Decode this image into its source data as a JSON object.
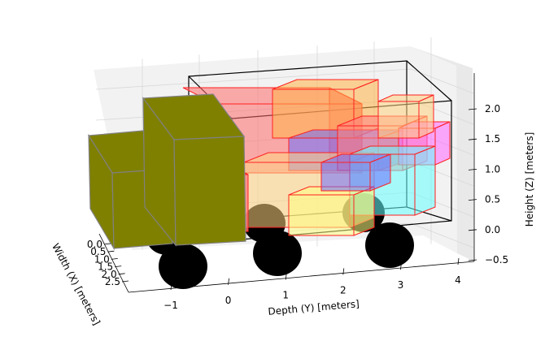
{
  "chart_data": {
    "type": "3d-box",
    "axes": {
      "x": {
        "label": "Width (X) [meters]",
        "ticks": [
          0.0,
          0.5,
          1.0,
          1.5,
          2.0,
          2.5
        ],
        "tick_labels": [
          "0.0",
          "0.5",
          "1.0",
          "1.5",
          "2.0",
          "2.5"
        ]
      },
      "y": {
        "label": "Depth (Y) [meters]",
        "ticks": [
          -1,
          0,
          1,
          2,
          3,
          4
        ],
        "tick_labels": [
          "−1",
          "0",
          "1",
          "2",
          "3",
          "4"
        ]
      },
      "z": {
        "label": "Height (Z) [meters]",
        "ticks": [
          -0.5,
          0.0,
          0.5,
          1.0,
          1.5,
          2.0
        ],
        "tick_labels": [
          "−0.5",
          "0.0",
          "0.5",
          "1.0",
          "1.5",
          "2.0"
        ]
      }
    },
    "grid": true,
    "container": {
      "x": [
        0,
        2.5
      ],
      "y": [
        0,
        4
      ],
      "z": [
        0,
        2
      ],
      "edge_color": "#000000"
    },
    "cab": {
      "color": "#808000",
      "edge_color": "#808080"
    },
    "wheel_color": "#000000",
    "box_edge_color": "#ff2020",
    "boxes": [
      {
        "color": "#ff6b6b"
      },
      {
        "color": "#ffb347"
      },
      {
        "color": "#6b6bff"
      },
      {
        "color": "#ffd27f"
      },
      {
        "color": "#ff8080"
      },
      {
        "color": "#ff66ff"
      },
      {
        "color": "#66ffff"
      },
      {
        "color": "#ffff80"
      },
      {
        "color": "#ffd27f"
      },
      {
        "color": "#ff8080"
      },
      {
        "color": "#6b6bff"
      }
    ]
  }
}
